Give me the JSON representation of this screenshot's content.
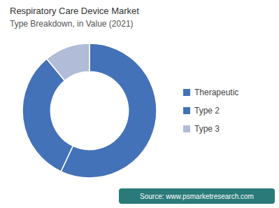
{
  "chart_data": {
    "type": "donut",
    "title": "Respiratory Care Device Market",
    "subtitle": "Type Breakdown, in Value (2021)",
    "categories": [
      "Therapeutic",
      "Type 2",
      "Type 3"
    ],
    "values": [
      57,
      32,
      11
    ],
    "colors": [
      "#4472b8",
      "#4472b8",
      "#b0bcd8"
    ],
    "legend": "right",
    "annotations": [
      "Source: www.psmarketresearch.com"
    ]
  }
}
